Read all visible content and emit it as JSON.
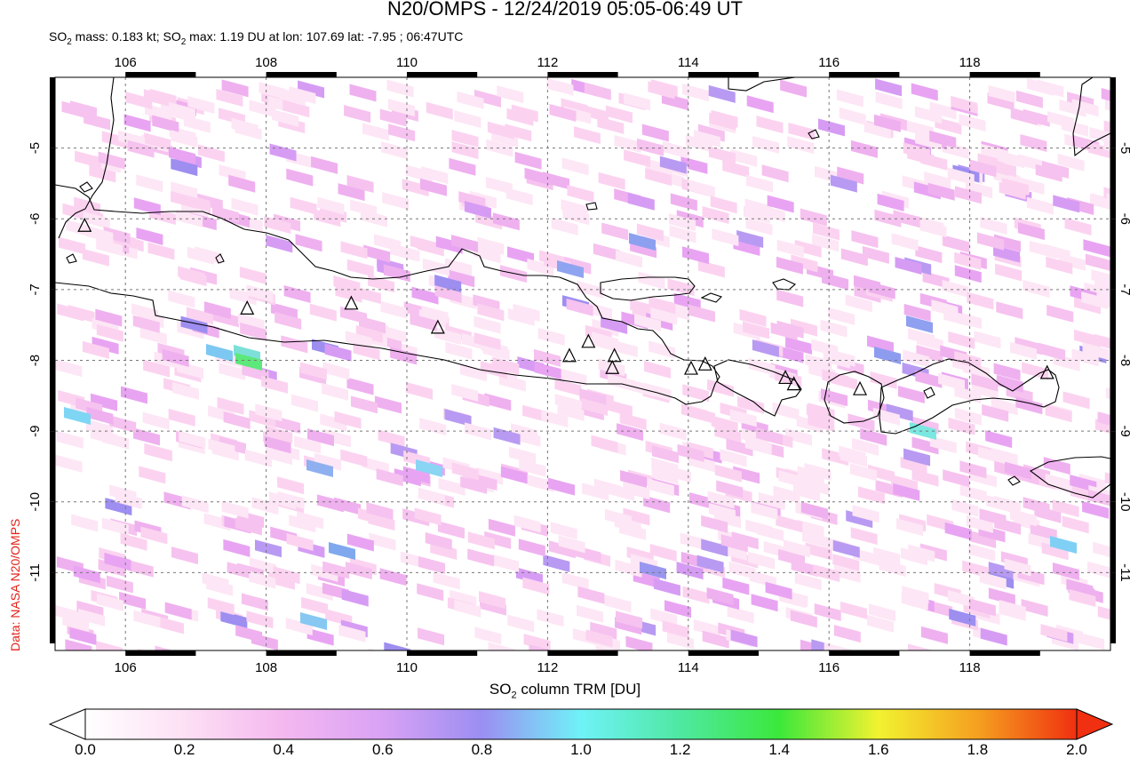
{
  "title": "N20/OMPS - 12/24/2019 05:05-06:49 UT",
  "subtitle": {
    "prefix": "SO",
    "sub": "2",
    "mid": " mass: 0.183 kt; SO",
    "sub2": "2",
    "suffix": " max: 1.19 DU at lon: 107.69 lat: -7.95 ; 06:47UTC"
  },
  "credit": "Data: NASA N20/OMPS",
  "map": {
    "lon_range": [
      105,
      120
    ],
    "lat_range": [
      -12.1,
      -4
    ],
    "lon_ticks": [
      "106",
      "108",
      "110",
      "112",
      "114",
      "116",
      "118"
    ],
    "lat_ticks": [
      "-5",
      "-6",
      "-7",
      "-8",
      "-9",
      "-10",
      "-11"
    ],
    "grid": "dashed",
    "volcano_icon": "triangle-icon",
    "volcanoes": [
      {
        "lon": 105.42,
        "lat": -6.1
      },
      {
        "lon": 107.73,
        "lat": -7.27
      },
      {
        "lon": 109.21,
        "lat": -7.2
      },
      {
        "lon": 110.44,
        "lat": -7.54
      },
      {
        "lon": 112.31,
        "lat": -7.94
      },
      {
        "lon": 112.58,
        "lat": -7.74
      },
      {
        "lon": 112.95,
        "lat": -7.94
      },
      {
        "lon": 112.92,
        "lat": -8.11
      },
      {
        "lon": 114.04,
        "lat": -8.12
      },
      {
        "lon": 114.24,
        "lat": -8.06
      },
      {
        "lon": 115.38,
        "lat": -8.25
      },
      {
        "lon": 115.5,
        "lat": -8.34
      },
      {
        "lon": 116.44,
        "lat": -8.41
      },
      {
        "lon": 119.1,
        "lat": -8.18
      }
    ]
  },
  "colorbar": {
    "label_prefix": "SO",
    "label_sub": "2",
    "label_suffix": " column TRM [DU]",
    "ticks": [
      "0.0",
      "0.2",
      "0.4",
      "0.6",
      "0.8",
      "1.0",
      "1.2",
      "1.4",
      "1.6",
      "1.8",
      "2.0"
    ],
    "range": [
      0,
      2
    ]
  }
}
